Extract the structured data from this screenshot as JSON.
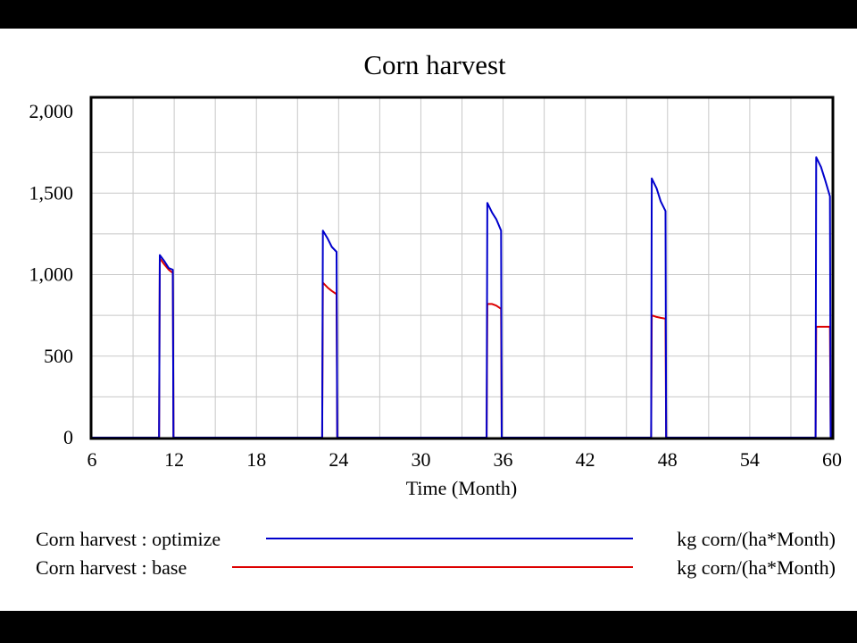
{
  "chart_data": {
    "type": "line",
    "title": "Corn harvest",
    "xlabel": "Time (Month)",
    "ylabel": "",
    "xlim": [
      6,
      60
    ],
    "ylim": [
      0,
      2000
    ],
    "xticks": [
      6,
      12,
      18,
      24,
      30,
      36,
      42,
      48,
      54,
      60
    ],
    "yticks": [
      0,
      500,
      1000,
      1500,
      2000
    ],
    "xtick_labels": [
      "6",
      "12",
      "18",
      "24",
      "30",
      "36",
      "42",
      "48",
      "54",
      "60"
    ],
    "ytick_labels": [
      "0",
      "500",
      "1,000",
      "1,500",
      "2,000"
    ],
    "grid": true,
    "legend_position": "bottom",
    "series": [
      {
        "name": "Corn harvest : optimize",
        "units": "kg corn/(ha*Month)",
        "color": "#0000cc",
        "x": [
          6,
          10.9,
          10.95,
          11.3,
          11.6,
          11.9,
          11.95,
          12.05,
          22.8,
          22.85,
          23.2,
          23.5,
          23.85,
          23.9,
          23.95,
          34.8,
          34.85,
          35.2,
          35.5,
          35.85,
          35.9,
          35.95,
          46.8,
          46.85,
          47.2,
          47.5,
          47.85,
          47.9,
          47.95,
          58.8,
          58.85,
          59.2,
          59.5,
          59.85,
          59.9,
          59.95,
          60
        ],
        "y": [
          0,
          0,
          1120,
          1080,
          1040,
          1030,
          0,
          0,
          0,
          1270,
          1220,
          1170,
          1140,
          0,
          0,
          0,
          1440,
          1380,
          1340,
          1270,
          0,
          0,
          0,
          1590,
          1530,
          1450,
          1390,
          0,
          0,
          0,
          1720,
          1660,
          1580,
          1480,
          0,
          0,
          0
        ]
      },
      {
        "name": "Corn harvest : base",
        "units": "kg corn/(ha*Month)",
        "color": "#dd0000",
        "x": [
          6,
          10.9,
          10.95,
          11.3,
          11.6,
          11.9,
          11.95,
          12.05,
          22.8,
          22.85,
          23.2,
          23.5,
          23.85,
          23.9,
          23.95,
          34.8,
          34.85,
          35.2,
          35.5,
          35.85,
          35.9,
          35.95,
          46.8,
          46.85,
          47.2,
          47.5,
          47.85,
          47.9,
          47.95,
          58.8,
          58.85,
          59.2,
          59.5,
          59.85,
          59.9,
          59.95,
          60
        ],
        "y": [
          0,
          0,
          1100,
          1060,
          1030,
          1010,
          0,
          0,
          0,
          950,
          920,
          900,
          880,
          0,
          0,
          0,
          820,
          820,
          810,
          790,
          0,
          0,
          0,
          750,
          740,
          735,
          730,
          0,
          0,
          0,
          680,
          680,
          680,
          680,
          0,
          0,
          0
        ]
      }
    ]
  }
}
